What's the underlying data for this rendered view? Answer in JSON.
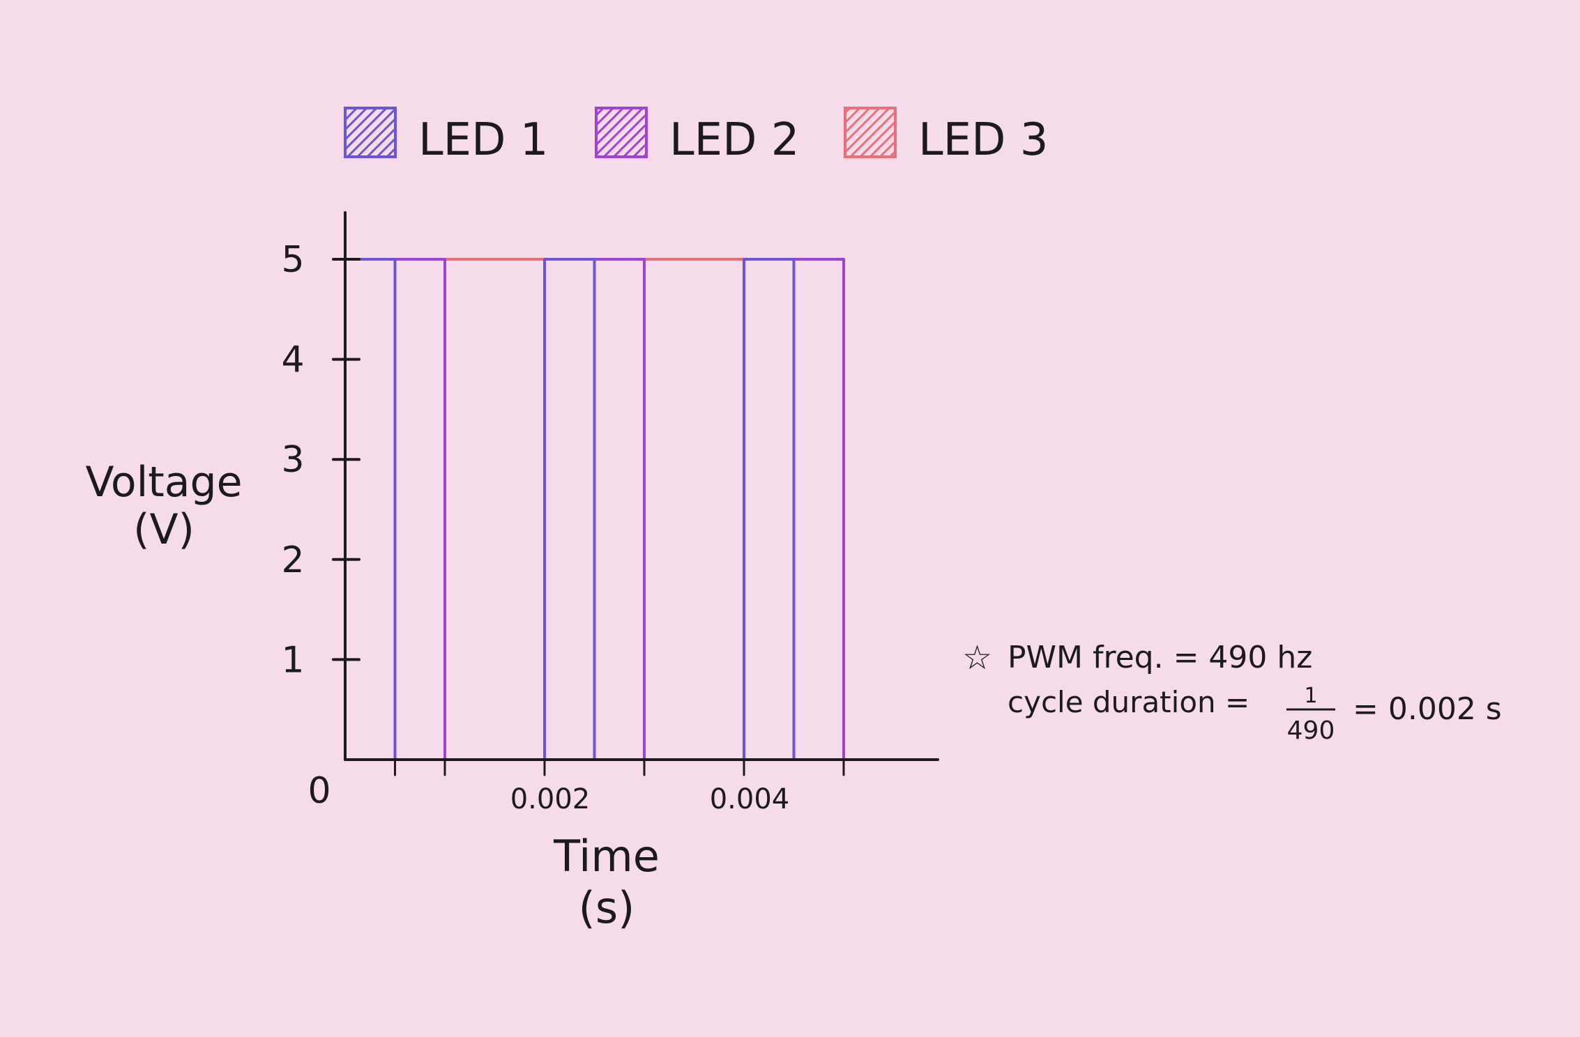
{
  "chart_data": {
    "type": "line",
    "title": "",
    "xlabel": "Time\n(s)",
    "ylabel": "Voltage\n(V)",
    "xlim": [
      0,
      0.006
    ],
    "ylim": [
      0,
      5
    ],
    "origin_label": "0",
    "x_ticks": [
      0.0005,
      0.001,
      0.002,
      0.003,
      0.004,
      0.005
    ],
    "x_tick_labels": [
      {
        "value": 0.002,
        "label": "0.002"
      },
      {
        "value": 0.004,
        "label": "0.004"
      }
    ],
    "y_ticks": [
      1,
      2,
      3,
      4,
      5
    ],
    "y_tick_labels": [
      "1",
      "2",
      "3",
      "4",
      "5"
    ],
    "grid": false,
    "legend_position": "top",
    "series": [
      {
        "name": "LED 1",
        "color": "#6a55d9",
        "points": [
          [
            0,
            5
          ],
          [
            0.0005,
            5
          ],
          [
            0.0005,
            0
          ],
          [
            0.002,
            0
          ],
          [
            0.002,
            5
          ],
          [
            0.0025,
            5
          ],
          [
            0.0025,
            0
          ],
          [
            0.004,
            0
          ],
          [
            0.004,
            5
          ],
          [
            0.0045,
            5
          ],
          [
            0.0045,
            0
          ],
          [
            0.005,
            0
          ]
        ]
      },
      {
        "name": "LED 2",
        "color": "#a142d6",
        "points": [
          [
            0,
            5
          ],
          [
            0.001,
            5
          ],
          [
            0.001,
            0
          ],
          [
            0.002,
            0
          ],
          [
            0.002,
            5
          ],
          [
            0.003,
            5
          ],
          [
            0.003,
            0
          ],
          [
            0.004,
            0
          ],
          [
            0.004,
            5
          ],
          [
            0.005,
            5
          ],
          [
            0.005,
            0
          ]
        ]
      },
      {
        "name": "LED 3",
        "color": "#e8707a",
        "points": [
          [
            0,
            5
          ],
          [
            0.005,
            5
          ]
        ]
      }
    ],
    "annotation": {
      "marker": "☆",
      "line1": "PWM freq. = 490 hz",
      "line2_prefix": "cycle duration =",
      "fraction_numerator": "1",
      "fraction_denominator": "490",
      "line2_suffix": "= 0.002 s"
    }
  }
}
